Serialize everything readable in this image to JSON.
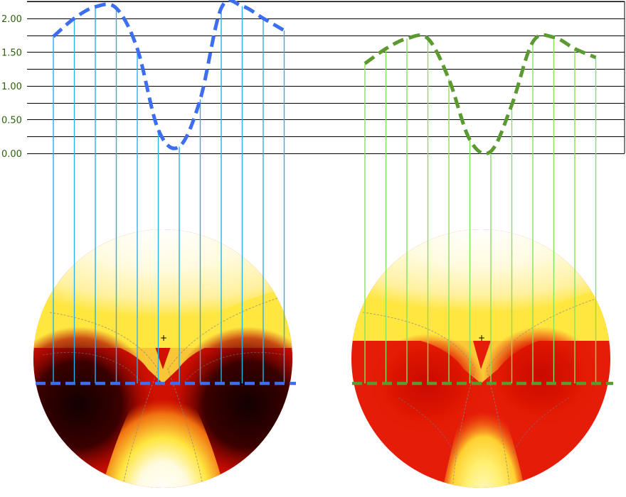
{
  "chart_data": {
    "type": "line",
    "ylim": [
      0,
      2.25
    ],
    "y_ticks": [
      "0.00",
      "0.50",
      "1.00",
      "1.50",
      "2.00"
    ],
    "grid_step": 0.25,
    "grid": true,
    "series": [
      {
        "color": "#3d6ef0",
        "drop_line_color": "#2ab0e6",
        "x": [
          0,
          0.1,
          0.2,
          0.3,
          0.4,
          0.5,
          0.6,
          0.7,
          0.8,
          0.9,
          1.0,
          1.1
        ],
        "values": [
          1.73,
          2.0,
          2.17,
          2.15,
          1.55,
          0.35,
          0.1,
          0.8,
          2.15,
          2.18,
          2.0,
          1.82
        ]
      },
      {
        "color": "#5a9a30",
        "drop_line_color": "#86e05a",
        "x": [
          0,
          0.1,
          0.2,
          0.3,
          0.4,
          0.5,
          0.6,
          0.7,
          0.8,
          0.9,
          1.0,
          1.1
        ],
        "values": [
          1.33,
          1.55,
          1.7,
          1.7,
          1.1,
          0.2,
          0.03,
          0.72,
          1.65,
          1.72,
          1.55,
          1.42
        ]
      }
    ]
  },
  "maps": [
    {
      "marker_icon": "plus-icon",
      "palette": [
        "#ffffff",
        "#fff6c0",
        "#ffe640",
        "#f06010",
        "#d01000",
        "#1a0000"
      ]
    },
    {
      "marker_icon": "plus-icon",
      "palette": [
        "#ffffff",
        "#fff6c0",
        "#ffe640",
        "#f06010",
        "#e01808"
      ]
    }
  ],
  "marker_glyph": "+"
}
